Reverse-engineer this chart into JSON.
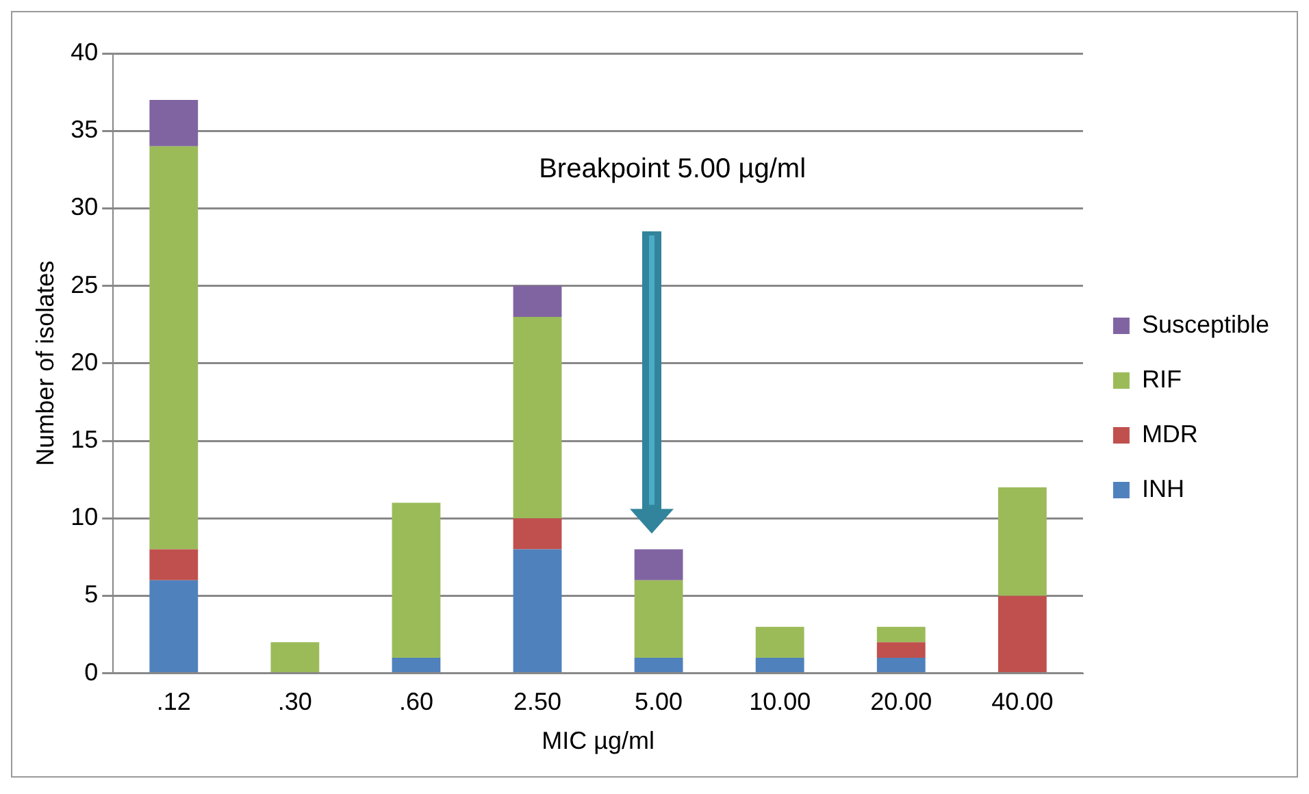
{
  "chart_data": {
    "type": "bar",
    "stacked": true,
    "xlabel": "MIC µg/ml",
    "ylabel": "Number of isolates",
    "categories": [
      ".12",
      ".30",
      ".60",
      "2.50",
      "5.00",
      "10.00",
      "20.00",
      "40.00"
    ],
    "series": [
      {
        "name": "INH",
        "color": "#4f81bd",
        "values": [
          6,
          0,
          1,
          8,
          1,
          1,
          1,
          0
        ]
      },
      {
        "name": "MDR",
        "color": "#c0504d",
        "values": [
          2,
          0,
          0,
          2,
          0,
          0,
          1,
          5
        ]
      },
      {
        "name": "RIF",
        "color": "#9bbb59",
        "values": [
          26,
          2,
          10,
          13,
          5,
          2,
          1,
          7
        ]
      },
      {
        "name": "Susceptible",
        "color": "#8064a2",
        "values": [
          3,
          0,
          0,
          2,
          2,
          0,
          0,
          0
        ]
      }
    ],
    "ylim": [
      0,
      40
    ],
    "yticks": [
      0,
      5,
      10,
      15,
      20,
      25,
      30,
      35,
      40
    ],
    "grid": "y",
    "legend": "right",
    "annotations": [
      "Breakpoint 5.00 µg/ml"
    ]
  }
}
